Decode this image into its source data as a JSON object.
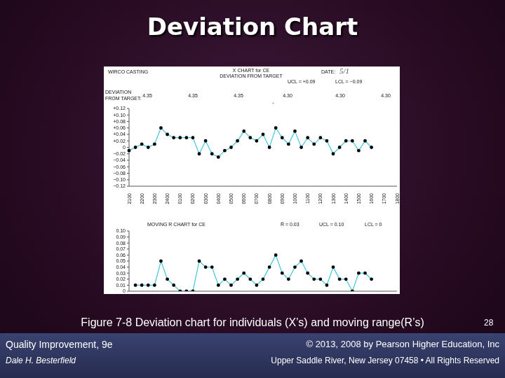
{
  "slide": {
    "title": "Deviation Chart",
    "caption": "Figure 7-8 Deviation chart for individuals (X’s) and moving range(R’s)",
    "footer_left": [
      "Quality Improvement, 9e",
      "Dale H. Besterfield"
    ],
    "footer_right": [
      "© 2013, 2008 by Pearson Higher Education, Inc",
      "Upper Saddle River, New Jersey 07458 • All Rights Reserved"
    ],
    "page": "28"
  },
  "chart_data": [
    {
      "type": "line",
      "company": "WIRCO CASTING",
      "title": "X CHART for CE",
      "subtitle": "DEVIATION FROM TARGET",
      "date_label": "DATE:",
      "date": "5/1",
      "limit_labels": [
        "UCL = +0.09",
        "LCL = −0.09"
      ],
      "y_label": "DEVIATION FROM TARGET:",
      "targets": [
        "4.35",
        "4.35",
        "4.35",
        "4.30",
        "4.30",
        "4.30"
      ],
      "target_mark": "*",
      "categories": [
        "2100",
        null,
        "2200",
        null,
        "2300",
        null,
        "2400",
        null,
        "0100",
        null,
        "0200",
        null,
        "0300",
        null,
        "0400",
        null,
        "0500",
        null,
        "0600",
        null,
        "0700",
        null,
        "0800",
        null,
        "0900",
        null,
        "1000",
        null,
        "1100",
        null,
        "1200",
        null,
        "1300",
        null,
        "1400",
        null,
        "1500",
        null,
        "1600",
        null,
        "1700",
        null,
        "1800"
      ],
      "values": [
        -0.01,
        0,
        0.01,
        0,
        0.01,
        0.06,
        0.04,
        0.03,
        0.03,
        0.03,
        0.03,
        -0.02,
        0.02,
        -0.02,
        -0.03,
        -0.01,
        0,
        0.02,
        0.05,
        0.03,
        0.02,
        0.04,
        0,
        0.06,
        0.03,
        0.01,
        0.05,
        0,
        0.03,
        0.01,
        0.03,
        0.02,
        -0.02,
        0,
        0.02,
        0.02,
        -0.01,
        0.02,
        0,
        null,
        null,
        null,
        null
      ],
      "color": "#3fc6df",
      "marker": "circle",
      "line_style": "solid",
      "grid": false,
      "ylim": [
        -0.12,
        0.12
      ],
      "yticks": [
        {
          "value": 0.12,
          "label": "+0.12"
        },
        {
          "value": 0.1,
          "label": "+0.10"
        },
        {
          "value": 0.08,
          "label": "+0.08"
        },
        {
          "value": 0.06,
          "label": "+0.06"
        },
        {
          "value": 0.04,
          "label": "+0.04"
        },
        {
          "value": 0.02,
          "label": "+0.02"
        },
        0,
        {
          "value": -0.02,
          "label": "−0.02"
        },
        {
          "value": -0.04,
          "label": "−0.04"
        },
        {
          "value": -0.06,
          "label": "−0.06"
        },
        {
          "value": -0.08,
          "label": "−0.08"
        },
        {
          "value": -0.1,
          "label": "−0.10"
        },
        {
          "value": -0.12,
          "label": "−0.12"
        }
      ]
    },
    {
      "type": "line",
      "title": "MOVING R CHART for CE",
      "limit_labels": [
        "R̄ = 0.03",
        "UCL = 0.10",
        "LCL = 0"
      ],
      "categories": [
        "2100",
        null,
        "2200",
        null,
        "2300",
        null,
        "2400",
        null,
        "0100",
        null,
        "0200",
        null,
        "0300",
        null,
        "0400",
        null,
        "0500",
        null,
        "0600",
        null,
        "0700",
        null,
        "0800",
        null,
        "0900",
        null,
        "1000",
        null,
        "1100",
        null,
        "1200",
        null,
        "1300",
        null,
        "1400",
        null,
        "1500",
        null,
        "1600",
        null,
        "1700",
        null,
        "1800"
      ],
      "values": [
        null,
        0.01,
        0.01,
        0.01,
        0.01,
        0.05,
        0.02,
        0.01,
        0,
        0,
        0,
        0.05,
        0.04,
        0.04,
        0.01,
        0.02,
        0.01,
        0.02,
        0.03,
        0.02,
        0.01,
        0.02,
        0.04,
        0.06,
        0.03,
        0.02,
        0.04,
        0.05,
        0.03,
        0.02,
        0.02,
        0.01,
        0.04,
        0.02,
        0.02,
        0,
        0.03,
        0.03,
        0.02,
        null,
        null,
        null,
        null
      ],
      "color": "#3fc6df",
      "marker": "circle",
      "line_style": "solid",
      "grid": false,
      "tick_labels": "y",
      "ylim": [
        0,
        0.1
      ],
      "yticks": [
        {
          "value": 0.1,
          "label": "0.10"
        },
        0.09,
        0.08,
        0.07,
        0.06,
        0.05,
        0.04,
        0.03,
        0.02,
        0.01,
        0
      ]
    }
  ]
}
